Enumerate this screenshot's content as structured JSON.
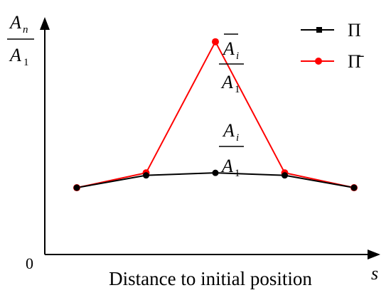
{
  "chart_data": {
    "type": "line",
    "title": "",
    "xlabel": "Distance to initial position",
    "x_axis_symbol": "s",
    "ylabel": "A_n / A_1",
    "y_origin_label": "0",
    "x": [
      1,
      2,
      3,
      4,
      5
    ],
    "ylim": [
      0,
      1
    ],
    "grid": false,
    "legend_position": "top-right",
    "series": [
      {
        "name": "Π",
        "color": "#000000",
        "values": [
          0.27,
          0.32,
          0.33,
          0.32,
          0.27
        ],
        "annotation": {
          "numerator": "A_i",
          "denominator": "A_1"
        }
      },
      {
        "name": "Π̄",
        "color": "#ff0000",
        "values": [
          0.27,
          0.33,
          0.86,
          0.33,
          0.27
        ],
        "annotation": {
          "numerator": "Ā_i",
          "denominator": "A_1"
        }
      }
    ]
  }
}
